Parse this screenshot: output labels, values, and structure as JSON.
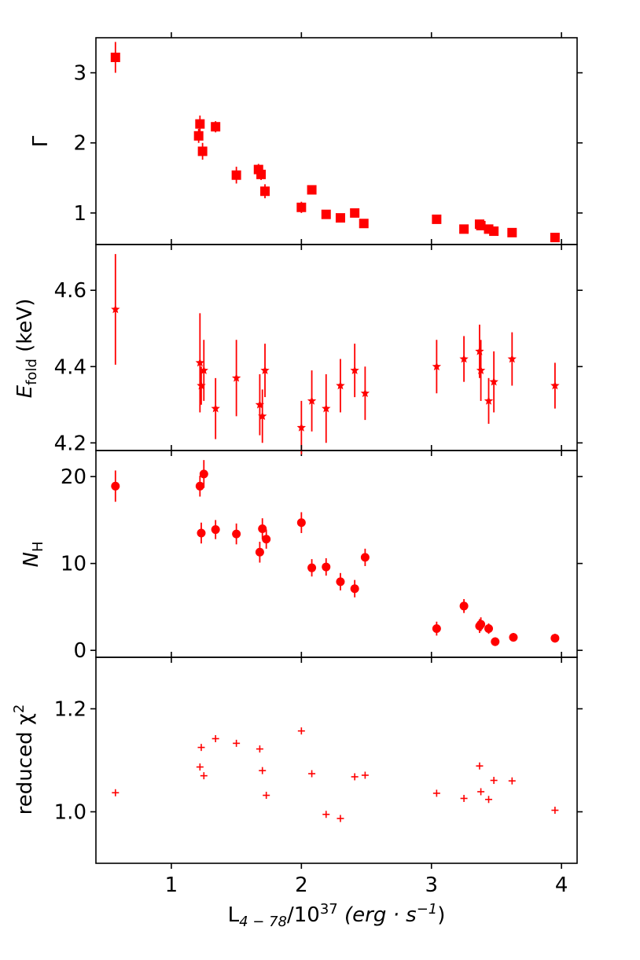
{
  "chart_data": [
    {
      "type": "scatter",
      "ylabel": "Γ",
      "ylim": [
        0.55,
        3.5
      ],
      "yticks": [
        1,
        2,
        3
      ],
      "marker": "square",
      "color": "#ff0000",
      "series": [
        {
          "x": [
            0.57,
            1.21,
            1.22,
            1.24,
            1.34,
            1.5,
            1.67,
            1.69,
            1.72,
            2.0,
            2.08,
            2.19,
            2.3,
            2.41,
            2.48,
            3.04,
            3.25,
            3.37,
            3.38,
            3.44,
            3.48,
            3.62,
            3.95
          ],
          "y": [
            3.22,
            2.1,
            2.27,
            1.88,
            2.23,
            1.54,
            1.62,
            1.55,
            1.31,
            1.08,
            1.33,
            0.98,
            0.93,
            1.0,
            0.85,
            0.91,
            0.77,
            0.84,
            0.82,
            0.77,
            0.74,
            0.72,
            0.65
          ],
          "yerr": [
            0.22,
            0.1,
            0.12,
            0.12,
            0.08,
            0.12,
            0.08,
            0.08,
            0.1,
            0.08,
            0.06,
            0.06,
            0.06,
            0.06,
            0.04,
            0.05,
            0.04,
            0.06,
            0.05,
            0.05,
            0.04,
            0.04,
            0.04
          ]
        }
      ]
    },
    {
      "type": "scatter",
      "ylabel_main": "E",
      "ylabel_sub": "fold",
      "ylabel_unit": " (keV)",
      "ylim": [
        4.18,
        4.72
      ],
      "yticks": [
        4.2,
        4.4,
        4.6
      ],
      "marker": "star",
      "color": "#ff0000",
      "series": [
        {
          "x": [
            0.57,
            1.22,
            1.23,
            1.25,
            1.34,
            1.5,
            1.68,
            1.7,
            1.72,
            2.0,
            2.08,
            2.19,
            2.3,
            2.41,
            2.49,
            3.04,
            3.25,
            3.37,
            3.38,
            3.44,
            3.48,
            3.62,
            3.95
          ],
          "y": [
            4.55,
            4.41,
            4.35,
            4.39,
            4.29,
            4.37,
            4.3,
            4.27,
            4.39,
            4.24,
            4.31,
            4.29,
            4.35,
            4.39,
            4.33,
            4.4,
            4.42,
            4.44,
            4.39,
            4.31,
            4.36,
            4.42,
            4.35
          ],
          "yerr": [
            0.145,
            0.13,
            0.05,
            0.08,
            0.08,
            0.1,
            0.08,
            0.07,
            0.07,
            0.07,
            0.08,
            0.09,
            0.07,
            0.07,
            0.07,
            0.07,
            0.06,
            0.07,
            0.08,
            0.06,
            0.08,
            0.07,
            0.06
          ]
        }
      ]
    },
    {
      "type": "scatter",
      "ylabel_main": "N",
      "ylabel_sub": "H",
      "ylim": [
        -0.8,
        23.0
      ],
      "yticks": [
        0,
        10,
        20
      ],
      "marker": "circle",
      "color": "#ff0000",
      "series": [
        {
          "x": [
            0.57,
            1.22,
            1.23,
            1.25,
            1.34,
            1.5,
            1.68,
            1.7,
            1.73,
            2.0,
            2.08,
            2.19,
            2.3,
            2.41,
            2.49,
            3.04,
            3.25,
            3.37,
            3.38,
            3.44,
            3.49,
            3.63,
            3.95
          ],
          "y": [
            18.9,
            18.9,
            13.5,
            20.3,
            13.9,
            13.4,
            11.3,
            14.0,
            12.8,
            14.7,
            9.5,
            9.6,
            7.9,
            7.1,
            10.7,
            2.5,
            5.1,
            2.8,
            3.0,
            2.5,
            1.0,
            1.5,
            1.4
          ],
          "yerr": [
            1.8,
            1.2,
            1.2,
            1.6,
            1.1,
            1.2,
            1.2,
            1.2,
            1.1,
            1.2,
            1.0,
            1.0,
            1.0,
            1.0,
            1.0,
            0.8,
            0.8,
            0.8,
            0.8,
            0.6,
            0.5,
            0.5,
            0.5
          ]
        }
      ]
    },
    {
      "type": "scatter",
      "ylabel_main": "reduced χ",
      "ylabel_sup": "2",
      "xlabel_main": "L",
      "xlabel_sub": "4 − 78",
      "xlabel_mid": "/10",
      "xlabel_sup": "37",
      "xlabel_unit": " (erg · s",
      "xlabel_unit_sup": "−1",
      "xlabel_close": ")",
      "xlim": [
        0.42,
        4.12
      ],
      "xticks": [
        1,
        2,
        3,
        4
      ],
      "ylim": [
        0.9,
        1.3
      ],
      "yticks": [
        1.0,
        1.2
      ],
      "marker": "plus",
      "color": "#ff0000",
      "series": [
        {
          "x": [
            0.57,
            1.22,
            1.23,
            1.25,
            1.34,
            1.5,
            1.68,
            1.7,
            1.73,
            2.0,
            2.08,
            2.19,
            2.3,
            2.41,
            2.49,
            3.04,
            3.25,
            3.37,
            3.38,
            3.44,
            3.48,
            3.62,
            3.95
          ],
          "y": [
            1.037,
            1.087,
            1.125,
            1.07,
            1.142,
            1.133,
            1.122,
            1.08,
            1.032,
            1.157,
            1.074,
            0.995,
            0.987,
            1.068,
            1.071,
            1.036,
            1.026,
            1.089,
            1.039,
            1.024,
            1.061,
            1.06,
            1.003
          ]
        }
      ]
    }
  ]
}
